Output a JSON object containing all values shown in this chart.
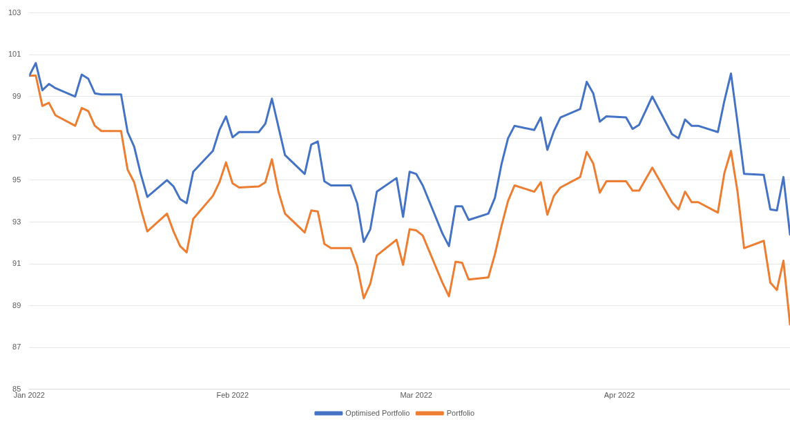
{
  "chart_data": {
    "type": "line",
    "x": [
      "2022-01-01",
      "2022-01-02",
      "2022-01-03",
      "2022-01-04",
      "2022-01-05",
      "2022-01-08",
      "2022-01-09",
      "2022-01-10",
      "2022-01-11",
      "2022-01-12",
      "2022-01-15",
      "2022-01-16",
      "2022-01-17",
      "2022-01-18",
      "2022-01-19",
      "2022-01-22",
      "2022-01-23",
      "2022-01-24",
      "2022-01-25",
      "2022-01-26",
      "2022-01-29",
      "2022-01-30",
      "2022-01-31",
      "2022-02-01",
      "2022-02-02",
      "2022-02-05",
      "2022-02-06",
      "2022-02-07",
      "2022-02-08",
      "2022-02-09",
      "2022-02-12",
      "2022-02-13",
      "2022-02-14",
      "2022-02-15",
      "2022-02-16",
      "2022-02-19",
      "2022-02-20",
      "2022-02-21",
      "2022-02-22",
      "2022-02-23",
      "2022-02-26",
      "2022-02-27",
      "2022-02-28",
      "2022-03-01",
      "2022-03-02",
      "2022-03-05",
      "2022-03-06",
      "2022-03-07",
      "2022-03-08",
      "2022-03-09",
      "2022-03-12",
      "2022-03-13",
      "2022-03-14",
      "2022-03-15",
      "2022-03-16",
      "2022-03-19",
      "2022-03-20",
      "2022-03-21",
      "2022-03-22",
      "2022-03-23",
      "2022-03-26",
      "2022-03-27",
      "2022-03-28",
      "2022-03-29",
      "2022-03-30",
      "2022-04-02",
      "2022-04-03",
      "2022-04-04",
      "2022-04-06",
      "2022-04-09",
      "2022-04-10",
      "2022-04-11",
      "2022-04-12",
      "2022-04-13",
      "2022-04-16",
      "2022-04-17",
      "2022-04-18",
      "2022-04-19",
      "2022-04-20",
      "2022-04-23",
      "2022-04-24",
      "2022-04-25",
      "2022-04-26",
      "2022-04-27"
    ],
    "series": [
      {
        "name": "Optimised Portfolio",
        "color": "#4472c4",
        "values": [
          100,
          100.6,
          99.3,
          99.6,
          99.4,
          99.0,
          100.05,
          99.85,
          99.15,
          99.1,
          99.1,
          97.3,
          96.6,
          95.3,
          94.2,
          95.0,
          94.7,
          94.1,
          93.9,
          95.4,
          96.4,
          97.4,
          98.05,
          97.05,
          97.3,
          97.3,
          97.7,
          98.9,
          97.55,
          96.2,
          95.3,
          96.7,
          96.85,
          94.95,
          94.75,
          94.75,
          93.9,
          92.05,
          92.65,
          94.45,
          95.1,
          93.25,
          95.4,
          95.3,
          94.75,
          92.45,
          91.85,
          93.75,
          93.75,
          93.1,
          93.4,
          94.15,
          95.75,
          97.0,
          97.6,
          97.4,
          98.0,
          96.45,
          97.35,
          98.0,
          98.4,
          99.7,
          99.15,
          97.8,
          98.05,
          98.0,
          97.45,
          97.65,
          99.0,
          97.2,
          97.0,
          97.9,
          97.6,
          97.6,
          97.3,
          98.8,
          100.1,
          97.75,
          95.3,
          95.25,
          93.6,
          93.55,
          95.15,
          92.4
        ]
      },
      {
        "name": "Portfolio",
        "color": "#ed7d31",
        "values": [
          100,
          100.0,
          98.55,
          98.7,
          98.1,
          97.6,
          98.45,
          98.3,
          97.6,
          97.35,
          97.35,
          95.5,
          94.9,
          93.65,
          92.55,
          93.4,
          92.55,
          91.85,
          91.55,
          93.15,
          94.25,
          94.9,
          95.85,
          94.85,
          94.65,
          94.7,
          94.9,
          96.0,
          94.45,
          93.4,
          92.5,
          93.55,
          93.5,
          91.95,
          91.75,
          91.75,
          90.9,
          89.35,
          90.05,
          91.4,
          92.15,
          90.95,
          92.65,
          92.6,
          92.35,
          90.1,
          89.45,
          91.1,
          91.05,
          90.25,
          90.35,
          91.45,
          92.8,
          94.0,
          94.75,
          94.45,
          94.9,
          93.35,
          94.25,
          94.65,
          95.15,
          96.35,
          95.8,
          94.4,
          94.95,
          94.95,
          94.5,
          94.5,
          95.6,
          93.95,
          93.6,
          94.45,
          93.95,
          93.95,
          93.45,
          95.35,
          96.4,
          94.45,
          91.75,
          92.1,
          90.1,
          89.75,
          91.15,
          88.1
        ]
      }
    ],
    "xlim": [
      "2022-01-01",
      "2022-04-27"
    ],
    "xticks": [
      {
        "value": "2022-01-01",
        "label": "Jan 2022"
      },
      {
        "value": "2022-02-01",
        "label": "Feb 2022"
      },
      {
        "value": "2022-03-01",
        "label": "Mar 2022"
      },
      {
        "value": "2022-04-01",
        "label": "Apr 2022"
      }
    ],
    "ylim": [
      85,
      103
    ],
    "yticks": [
      85,
      87,
      89,
      91,
      93,
      95,
      97,
      99,
      101,
      103
    ],
    "grid": "y",
    "legend": "bottom",
    "marker": "none",
    "line_style": "solid"
  }
}
